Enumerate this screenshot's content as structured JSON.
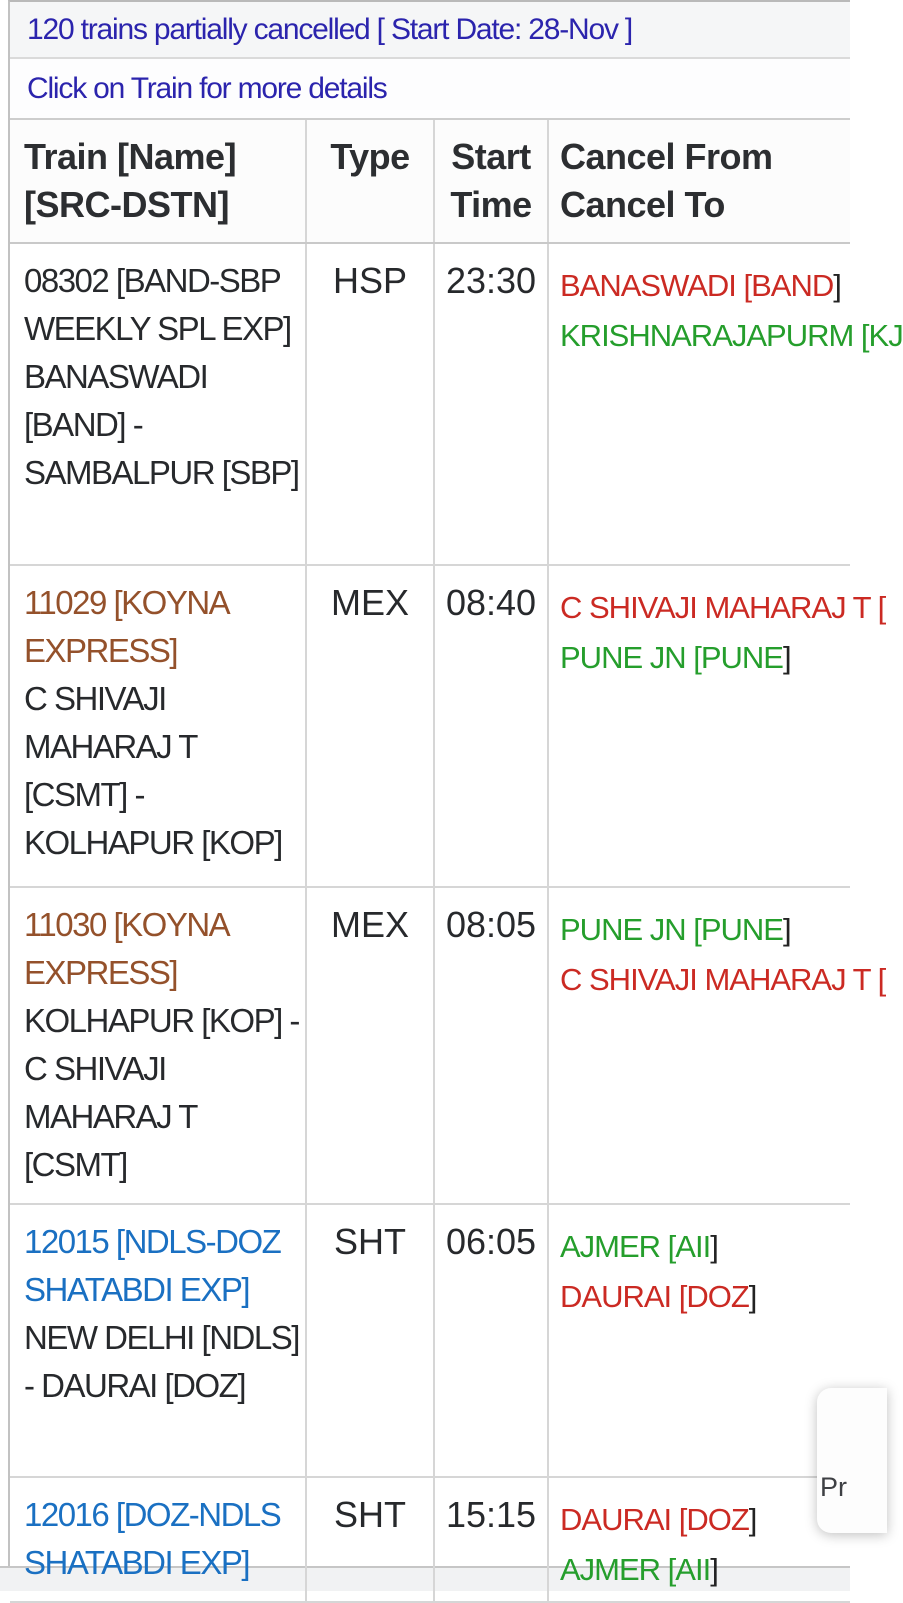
{
  "header": {
    "title": "120 trains partially cancelled [ Start Date: 28-Nov ]",
    "subtitle": "Click on Train for more details"
  },
  "table": {
    "columns": {
      "train": {
        "line1": "Train [Name]",
        "line2": "[SRC-DSTN]"
      },
      "type": {
        "line1": "Type",
        "line2": ""
      },
      "start": {
        "line1": "Start",
        "line2": "Time"
      },
      "cancel": {
        "line1": "Cancel From",
        "line2": "Cancel To"
      }
    },
    "rows": [
      {
        "train": "08302 [BAND-SBP WEEKLY SPL EXP]",
        "train_color": "plain",
        "route": " BANASWADI [BAND] - SAMBALPUR [SBP]",
        "type": "HSP",
        "start_time": "23:30",
        "cancel_from": {
          "text": "BANASWADI [BAND",
          "suffix": "]",
          "color": "red"
        },
        "cancel_to": {
          "text": "KRISHNARAJAPURM [KJ",
          "suffix": "",
          "color": "green"
        }
      },
      {
        "train": "11029 [KOYNA EXPRESS]",
        "train_color": "brown",
        "route": " C SHIVAJI MAHARAJ T [CSMT] - KOLHAPUR [KOP]",
        "type": "MEX",
        "start_time": "08:40",
        "cancel_from": {
          "text": "C SHIVAJI MAHARAJ T [",
          "suffix": "",
          "color": "red"
        },
        "cancel_to": {
          "text": "PUNE JN [PUNE",
          "suffix": "]",
          "color": "green"
        }
      },
      {
        "train": "11030 [KOYNA EXPRESS]",
        "train_color": "brown",
        "route": " KOLHAPUR [KOP] - C SHIVAJI MAHARAJ T [CSMT]",
        "type": "MEX",
        "start_time": "08:05",
        "cancel_from": {
          "text": "PUNE JN [PUNE",
          "suffix": "]",
          "color": "green"
        },
        "cancel_to": {
          "text": "C SHIVAJI MAHARAJ T [",
          "suffix": "",
          "color": "red"
        }
      },
      {
        "train": "12015 [NDLS-DOZ SHATABDI EXP]",
        "train_color": "blue",
        "route": " NEW DELHI [NDLS] - DAURAI [DOZ]",
        "type": "SHT",
        "start_time": "06:05",
        "cancel_from": {
          "text": "AJMER [AII",
          "suffix": "]",
          "color": "green"
        },
        "cancel_to": {
          "text": "DAURAI [DOZ",
          "suffix": "]",
          "color": "red"
        }
      },
      {
        "train": "12016 [DOZ-NDLS SHATABDI EXP]",
        "train_color": "blue",
        "route": "",
        "type": "SHT",
        "start_time": "15:15",
        "cancel_from": {
          "text": "DAURAI [DOZ",
          "suffix": "]",
          "color": "red"
        },
        "cancel_to": {
          "text": "AJMER [AII",
          "suffix": "]",
          "color": "green"
        }
      }
    ]
  },
  "overlay": {
    "label": "Pr"
  },
  "colors": {
    "title_blue": "#2b24ad",
    "link_blue": "#1a70c2",
    "link_brown": "#94512b",
    "text_black": "#27292c",
    "cancel_red": "#cb2a23",
    "cancel_green": "#259e2c"
  }
}
